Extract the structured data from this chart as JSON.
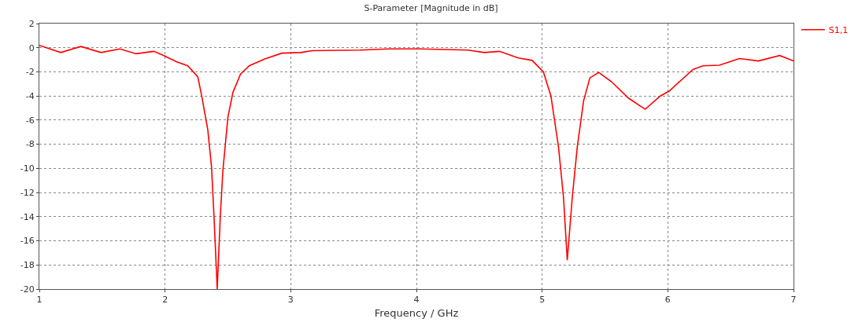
{
  "chart_data": {
    "type": "line",
    "title": "S-Parameter [Magnitude in dB]",
    "xlabel": "Frequency / GHz",
    "xlim": [
      1,
      7
    ],
    "xticks": [
      1,
      2,
      3,
      4,
      5,
      6,
      7
    ],
    "ylim": [
      -20,
      2
    ],
    "yticks": [
      2,
      0,
      -2,
      -4,
      -6,
      -8,
      -10,
      -12,
      -14,
      -16,
      -18,
      -20
    ],
    "grid": true,
    "legend": "top right",
    "marker": "none",
    "line_style": "solid",
    "series": [
      {
        "name": "S1,1",
        "color": "#ff0000",
        "x": [
          1.0,
          1.17,
          1.33,
          1.49,
          1.64,
          1.77,
          1.91,
          1.99,
          2.09,
          2.18,
          2.26,
          2.29,
          2.34,
          2.37,
          2.39,
          2.415,
          2.44,
          2.46,
          2.5,
          2.54,
          2.6,
          2.67,
          2.79,
          2.93,
          3.08,
          3.17,
          3.55,
          3.78,
          4.03,
          4.41,
          4.54,
          4.66,
          4.81,
          4.92,
          5.01,
          5.07,
          5.13,
          5.17,
          5.2,
          5.24,
          5.28,
          5.33,
          5.38,
          5.45,
          5.55,
          5.69,
          5.82,
          5.94,
          6.01,
          6.2,
          6.28,
          6.41,
          6.57,
          6.72,
          6.89,
          7.0
        ],
        "values": [
          0.2,
          -0.4,
          0.1,
          -0.4,
          -0.1,
          -0.5,
          -0.3,
          -0.65,
          -1.15,
          -1.5,
          -2.4,
          -3.9,
          -6.8,
          -9.9,
          -14.1,
          -20,
          -13.9,
          -10.2,
          -5.75,
          -3.7,
          -2.2,
          -1.5,
          -0.95,
          -0.45,
          -0.4,
          -0.25,
          -0.2,
          -0.1,
          -0.1,
          -0.2,
          -0.4,
          -0.3,
          -0.85,
          -1.05,
          -2.0,
          -4.0,
          -8.2,
          -12.4,
          -17.6,
          -12.4,
          -8.2,
          -4.4,
          -2.5,
          -2.05,
          -2.8,
          -4.2,
          -5.1,
          -4.0,
          -3.6,
          -1.8,
          -1.5,
          -1.45,
          -0.9,
          -1.1,
          -0.65,
          -1.1
        ]
      }
    ]
  }
}
